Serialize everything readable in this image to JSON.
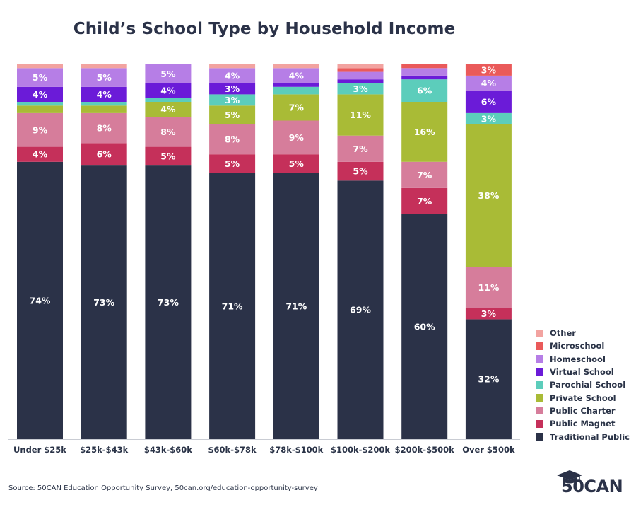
{
  "chart_data": {
    "type": "stacked-bar",
    "title": "Child’s School Type by Household Income",
    "categories": [
      "Under $25k",
      "$25k-$43k",
      "$43k-$60k",
      "$60k-$78k",
      "$78k-$100k",
      "$100k-$200k",
      "$200k-$500k",
      "Over $500k"
    ],
    "series": [
      {
        "name": "Traditional Public",
        "color": "#2b3248",
        "values": [
          74,
          73,
          73,
          71,
          71,
          69,
          60,
          32
        ],
        "labels": [
          "74%",
          "73%",
          "73%",
          "71%",
          "71%",
          "69%",
          "60%",
          "32%"
        ]
      },
      {
        "name": "Public Magnet",
        "color": "#c5305a",
        "values": [
          4,
          6,
          5,
          5,
          5,
          5,
          7,
          3
        ],
        "labels": [
          "4%",
          "6%",
          "5%",
          "5%",
          "5%",
          "5%",
          "7%",
          "3%"
        ]
      },
      {
        "name": "Public Charter",
        "color": "#d67d9b",
        "values": [
          9,
          8,
          8,
          8,
          9,
          7,
          7,
          11
        ],
        "labels": [
          "9%",
          "8%",
          "8%",
          "8%",
          "9%",
          "7%",
          "7%",
          "11%"
        ]
      },
      {
        "name": "Private School",
        "color": "#a9bb36",
        "values": [
          2,
          2,
          4,
          5,
          7,
          11,
          16,
          38
        ],
        "labels": [
          "",
          "",
          "4%",
          "5%",
          "7%",
          "11%",
          "16%",
          "38%"
        ]
      },
      {
        "name": "Parochial School",
        "color": "#5ccdbb",
        "values": [
          1,
          1,
          1,
          3,
          2,
          3,
          6,
          3
        ],
        "labels": [
          "",
          "",
          "",
          "3%",
          "",
          "3%",
          "6%",
          "3%"
        ]
      },
      {
        "name": "Virtual School",
        "color": "#6b1bd8",
        "values": [
          4,
          4,
          4,
          3,
          1,
          1,
          1,
          6
        ],
        "labels": [
          "4%",
          "4%",
          "4%",
          "3%",
          "",
          "",
          "",
          "6%"
        ]
      },
      {
        "name": "Homeschool",
        "color": "#b67ee6",
        "values": [
          5,
          5,
          5,
          4,
          4,
          2,
          2,
          4
        ],
        "labels": [
          "5%",
          "5%",
          "5%",
          "4%",
          "4%",
          "",
          "",
          "4%"
        ]
      },
      {
        "name": "Microschool",
        "color": "#ea5a5a",
        "values": [
          0,
          0,
          0,
          0,
          0,
          1,
          1,
          3
        ],
        "labels": [
          "",
          "",
          "",
          "",
          "",
          "",
          "",
          "3%"
        ]
      },
      {
        "name": "Other",
        "color": "#f2a3a0",
        "values": [
          1,
          1,
          0,
          1,
          1,
          1,
          0,
          0
        ],
        "labels": [
          "",
          "",
          "",
          "",
          "",
          "",
          "",
          ""
        ]
      }
    ],
    "ylim": [
      0,
      100
    ],
    "legend_position": "bottom-right",
    "legend_order": [
      "Other",
      "Microschool",
      "Homeschool",
      "Virtual School",
      "Parochial School",
      "Private School",
      "Public Charter",
      "Public Magnet",
      "Traditional Public"
    ],
    "grid": false
  },
  "source": "Source: 50CAN Education Opportunity Survey, 50can.org/education-opportunity-survey",
  "logo": {
    "text": "50CAN",
    "icon": "graduation-cap-icon"
  }
}
